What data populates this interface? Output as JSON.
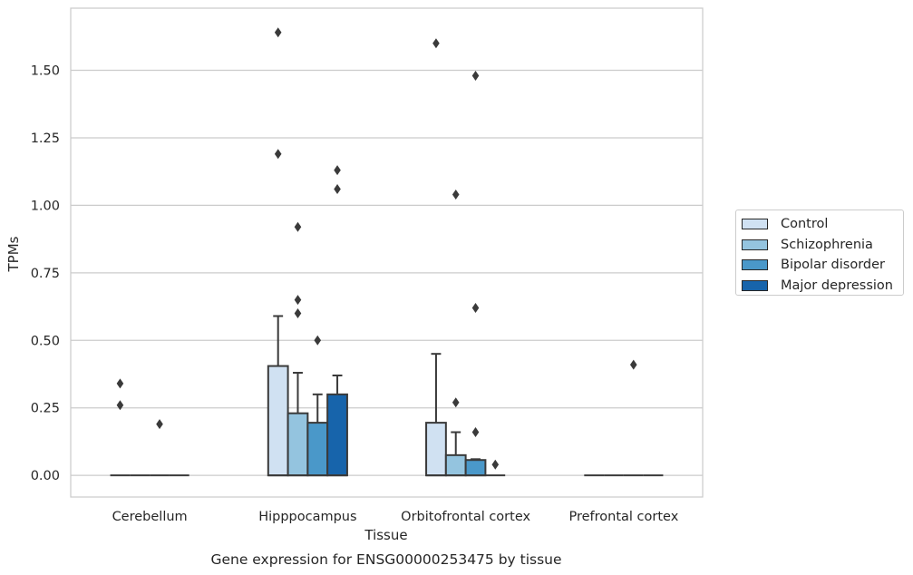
{
  "chart_data": {
    "type": "box",
    "xlabel": "Tissue",
    "ylabel": "TPMs",
    "caption": "Gene expression for ENSG00000253475 by tissue",
    "categories": [
      "Cerebellum",
      "Hipppocampus",
      "Orbitofrontal cortex",
      "Prefrontal cortex"
    ],
    "ylim": [
      -0.08,
      1.73
    ],
    "yticks": [
      0.0,
      0.25,
      0.5,
      0.75,
      1.0,
      1.25,
      1.5
    ],
    "ytick_labels": [
      "0.00",
      "0.25",
      "0.50",
      "0.75",
      "1.00",
      "1.25",
      "1.50"
    ],
    "grid": "horizontal",
    "legend_position": "right",
    "series": [
      {
        "name": "Control",
        "color": "#d0e1f2",
        "boxes": [
          {
            "q1": 0,
            "median": 0,
            "q3": 0,
            "whisker_low": 0,
            "whisker_high": 0,
            "outliers": [
              0.26,
              0.34
            ]
          },
          {
            "q1": 0,
            "median": 0,
            "q3": 0.405,
            "whisker_low": 0,
            "whisker_high": 0.59,
            "outliers": [
              1.19,
              1.64
            ]
          },
          {
            "q1": 0,
            "median": 0,
            "q3": 0.195,
            "whisker_low": 0,
            "whisker_high": 0.45,
            "outliers": [
              1.6
            ]
          },
          {
            "q1": 0,
            "median": 0,
            "q3": 0,
            "whisker_low": 0,
            "whisker_high": 0,
            "outliers": []
          }
        ]
      },
      {
        "name": "Schizophrenia",
        "color": "#94c4df",
        "boxes": [
          {
            "q1": 0,
            "median": 0,
            "q3": 0,
            "whisker_low": 0,
            "whisker_high": 0,
            "outliers": []
          },
          {
            "q1": 0,
            "median": 0,
            "q3": 0.23,
            "whisker_low": 0,
            "whisker_high": 0.38,
            "outliers": [
              0.6,
              0.65,
              0.92
            ]
          },
          {
            "q1": 0,
            "median": 0,
            "q3": 0.075,
            "whisker_low": 0,
            "whisker_high": 0.16,
            "outliers": [
              0.27,
              1.04
            ]
          },
          {
            "q1": 0,
            "median": 0,
            "q3": 0,
            "whisker_low": 0,
            "whisker_high": 0,
            "outliers": []
          }
        ]
      },
      {
        "name": "Bipolar disorder",
        "color": "#4a98c9",
        "boxes": [
          {
            "q1": 0,
            "median": 0,
            "q3": 0,
            "whisker_low": 0,
            "whisker_high": 0,
            "outliers": [
              0.19
            ]
          },
          {
            "q1": 0,
            "median": 0,
            "q3": 0.195,
            "whisker_low": 0,
            "whisker_high": 0.3,
            "outliers": [
              0.5
            ]
          },
          {
            "q1": 0,
            "median": 0,
            "q3": 0.057,
            "whisker_low": 0,
            "whisker_high": 0.06,
            "outliers": [
              0.16,
              0.62,
              1.48
            ]
          },
          {
            "q1": 0,
            "median": 0,
            "q3": 0,
            "whisker_low": 0,
            "whisker_high": 0,
            "outliers": [
              0.41
            ]
          }
        ]
      },
      {
        "name": "Major depression",
        "color": "#1764ab",
        "boxes": [
          {
            "q1": 0,
            "median": 0,
            "q3": 0,
            "whisker_low": 0,
            "whisker_high": 0,
            "outliers": []
          },
          {
            "q1": 0,
            "median": 0,
            "q3": 0.3,
            "whisker_low": 0,
            "whisker_high": 0.37,
            "outliers": [
              1.06,
              1.13
            ]
          },
          {
            "q1": 0,
            "median": 0,
            "q3": 0,
            "whisker_low": 0,
            "whisker_high": 0,
            "outliers": [
              0.04
            ]
          },
          {
            "q1": 0,
            "median": 0,
            "q3": 0,
            "whisker_low": 0,
            "whisker_high": 0,
            "outliers": []
          }
        ]
      }
    ]
  }
}
